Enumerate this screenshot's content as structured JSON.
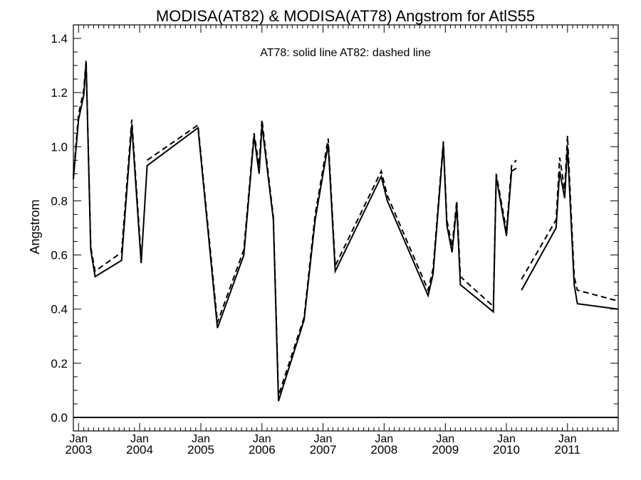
{
  "chart_data": {
    "type": "line",
    "title": "MODISA(AT82) & MODISA(AT78)  Angstrom for AtlS55",
    "annotation": "AT78: solid line   AT82: dashed line",
    "xlabel": "",
    "ylabel": "Angstrom",
    "xlim": [
      "2002-12-01",
      "2011-10-31"
    ],
    "ylim": [
      -0.05,
      1.45
    ],
    "yticks": [
      0.0,
      0.2,
      0.4,
      0.6,
      0.8,
      1.0,
      1.2,
      1.4
    ],
    "ytick_labels": [
      "0.0",
      "0.2",
      "0.4",
      "0.6",
      "0.8",
      "1.0",
      "1.2",
      "1.4"
    ],
    "xticks": [
      "2003-01-01",
      "2004-01-01",
      "2005-01-01",
      "2006-01-01",
      "2007-01-01",
      "2008-01-01",
      "2009-01-01",
      "2010-01-01",
      "2011-01-01"
    ],
    "xtick_month_label": "Jan",
    "xtick_year_labels": [
      "2003",
      "2004",
      "2005",
      "2006",
      "2007",
      "2008",
      "2009",
      "2010",
      "2011"
    ],
    "zero_line": 0.0,
    "series": [
      {
        "name": "AT78",
        "style": "solid",
        "segments": [
          [
            [
              "2002-12-01",
              0.88
            ],
            [
              "2003-01-01",
              1.1
            ],
            [
              "2003-02-01",
              1.19
            ],
            [
              "2003-02-15",
              1.31
            ],
            [
              "2003-03-15",
              0.62
            ],
            [
              "2003-04-10",
              0.52
            ],
            [
              "2003-09-15",
              0.58
            ],
            [
              "2003-11-15",
              1.08
            ],
            [
              "2004-01-10",
              0.57
            ],
            [
              "2004-02-15",
              0.93
            ],
            [
              "2004-12-15",
              1.07
            ],
            [
              "2005-04-10",
              0.33
            ],
            [
              "2005-09-15",
              0.6
            ],
            [
              "2005-11-15",
              1.04
            ],
            [
              "2005-12-15",
              0.9
            ],
            [
              "2006-01-01",
              1.08
            ],
            [
              "2006-03-10",
              0.73
            ],
            [
              "2006-04-10",
              0.06
            ],
            [
              "2006-09-10",
              0.36
            ],
            [
              "2006-11-15",
              0.73
            ],
            [
              "2007-02-01",
              1.01
            ],
            [
              "2007-03-15",
              0.54
            ],
            [
              "2007-12-15",
              0.89
            ],
            [
              "2008-01-20",
              0.8
            ],
            [
              "2008-09-20",
              0.45
            ],
            [
              "2008-10-20",
              0.53
            ],
            [
              "2008-12-20",
              1.01
            ],
            [
              "2009-01-10",
              0.71
            ],
            [
              "2009-02-10",
              0.61
            ],
            [
              "2009-03-10",
              0.78
            ],
            [
              "2009-04-01",
              0.49
            ],
            [
              "2009-10-15",
              0.39
            ],
            [
              "2009-11-01",
              0.89
            ],
            [
              "2010-01-01",
              0.67
            ],
            [
              "2010-02-01",
              0.91
            ],
            [
              "2010-03-01",
              0.92
            ]
          ],
          [
            [
              "2010-04-01",
              0.47
            ],
            [
              "2010-10-25",
              0.7
            ],
            [
              "2010-11-15",
              0.91
            ],
            [
              "2010-12-15",
              0.81
            ],
            [
              "2011-01-01",
              1.0
            ],
            [
              "2011-02-10",
              0.49
            ],
            [
              "2011-03-01",
              0.42
            ],
            [
              "2011-10-31",
              0.4
            ]
          ]
        ]
      },
      {
        "name": "AT82",
        "style": "dashed",
        "segments": [
          [
            [
              "2002-12-01",
              0.89
            ],
            [
              "2003-01-01",
              1.12
            ],
            [
              "2003-02-01",
              1.21
            ],
            [
              "2003-02-15",
              1.32
            ],
            [
              "2003-03-15",
              0.63
            ],
            [
              "2003-04-10",
              0.54
            ],
            [
              "2003-09-15",
              0.61
            ],
            [
              "2003-11-15",
              1.1
            ],
            [
              "2004-01-10",
              0.59
            ]
          ],
          [
            [
              "2004-02-15",
              0.95
            ],
            [
              "2004-12-15",
              1.08
            ],
            [
              "2005-04-10",
              0.35
            ],
            [
              "2005-09-15",
              0.62
            ],
            [
              "2005-11-15",
              1.05
            ],
            [
              "2005-12-15",
              0.93
            ],
            [
              "2006-01-01",
              1.1
            ],
            [
              "2006-03-10",
              0.74
            ],
            [
              "2006-04-10",
              0.08
            ],
            [
              "2006-09-10",
              0.37
            ],
            [
              "2006-11-15",
              0.75
            ],
            [
              "2007-02-01",
              1.03
            ],
            [
              "2007-03-15",
              0.56
            ],
            [
              "2007-12-15",
              0.91
            ],
            [
              "2008-01-20",
              0.82
            ],
            [
              "2008-09-20",
              0.47
            ],
            [
              "2008-10-20",
              0.55
            ],
            [
              "2008-12-20",
              1.02
            ],
            [
              "2009-01-10",
              0.73
            ],
            [
              "2009-02-10",
              0.63
            ],
            [
              "2009-03-10",
              0.8
            ],
            [
              "2009-04-01",
              0.52
            ],
            [
              "2009-10-15",
              0.41
            ],
            [
              "2009-11-01",
              0.9
            ],
            [
              "2010-01-01",
              0.69
            ],
            [
              "2010-02-01",
              0.93
            ],
            [
              "2010-03-01",
              0.95
            ]
          ],
          [
            [
              "2010-04-01",
              0.51
            ],
            [
              "2010-10-25",
              0.73
            ],
            [
              "2010-11-15",
              0.96
            ],
            [
              "2010-12-15",
              0.84
            ],
            [
              "2011-01-01",
              1.04
            ],
            [
              "2011-02-10",
              0.52
            ],
            [
              "2011-03-01",
              0.47
            ],
            [
              "2011-10-31",
              0.43
            ]
          ]
        ]
      }
    ]
  }
}
